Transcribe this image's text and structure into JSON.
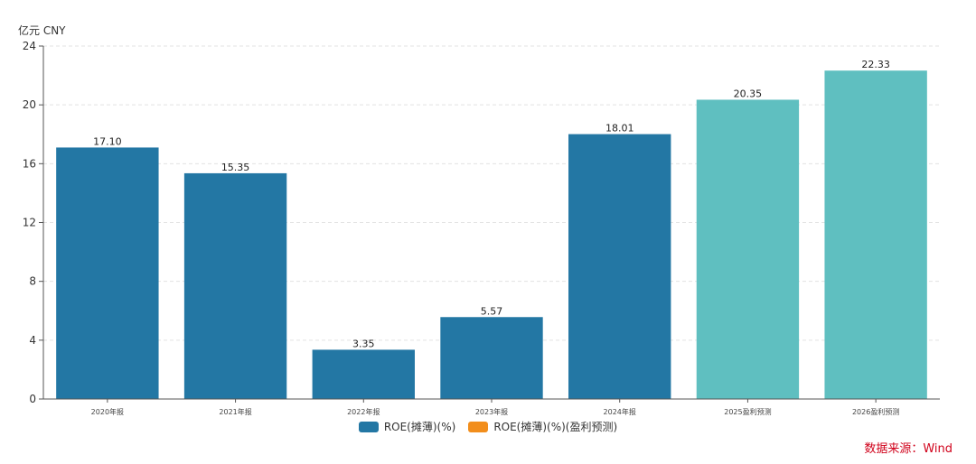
{
  "unit_label": "亿元  CNY",
  "source": "数据来源：Wind",
  "colors": {
    "actual": "#2377a4",
    "forecast": "#5fbfc0",
    "legend_forecast": "#f28e1c",
    "grid": "#e3e3e3",
    "axis": "#555555"
  },
  "legend": [
    {
      "label": "ROE(摊薄)(%)",
      "color": "#2377a4"
    },
    {
      "label": "ROE(摊薄)(%)(盈利预测)",
      "color": "#f28e1c"
    }
  ],
  "chart_data": {
    "type": "bar",
    "categories": [
      "2020年报",
      "2021年报",
      "2022年报",
      "2023年报",
      "2024年报",
      "2025盈利预测",
      "2026盈利预测"
    ],
    "values": [
      17.1,
      15.35,
      3.35,
      5.57,
      18.01,
      20.35,
      22.33
    ],
    "value_labels": [
      "17.10",
      "15.35",
      "3.35",
      "5.57",
      "18.01",
      "20.35",
      "22.33"
    ],
    "is_forecast": [
      false,
      false,
      false,
      false,
      false,
      true,
      true
    ],
    "ylim": [
      0,
      24
    ],
    "yticks": [
      0,
      4,
      8,
      12,
      16,
      20,
      24
    ],
    "grid": true,
    "legend_position": "bottom"
  }
}
